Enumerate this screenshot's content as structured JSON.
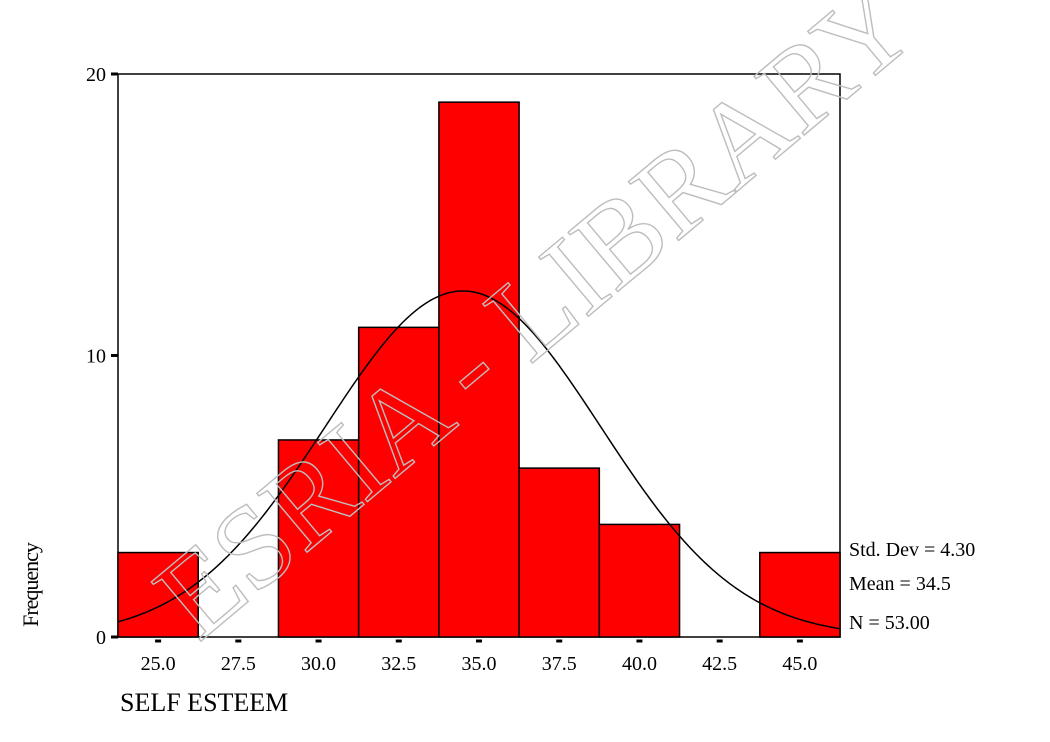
{
  "chart_data": {
    "type": "bar",
    "xlabel": "SELF ESTEEM",
    "ylabel": "Frequency",
    "categories": [
      "25.0",
      "27.5",
      "30.0",
      "32.5",
      "35.0",
      "37.5",
      "40.0",
      "42.5",
      "45.0"
    ],
    "values": [
      3,
      0,
      7,
      11,
      19,
      6,
      4,
      0,
      3
    ],
    "yticks": [
      "0",
      "10",
      "20"
    ],
    "ylim": [
      0,
      20
    ],
    "grid": false,
    "bar_color": "#ff0000",
    "normal_curve": {
      "mean": 34.5,
      "std": 4.3,
      "n": 53
    },
    "stats": {
      "std_dev": "Std. Dev = 4.30",
      "mean": "Mean = 34.5",
      "n": "N = 53.00"
    }
  },
  "watermark": {
    "text": "ESRIA - LIBRARY"
  }
}
